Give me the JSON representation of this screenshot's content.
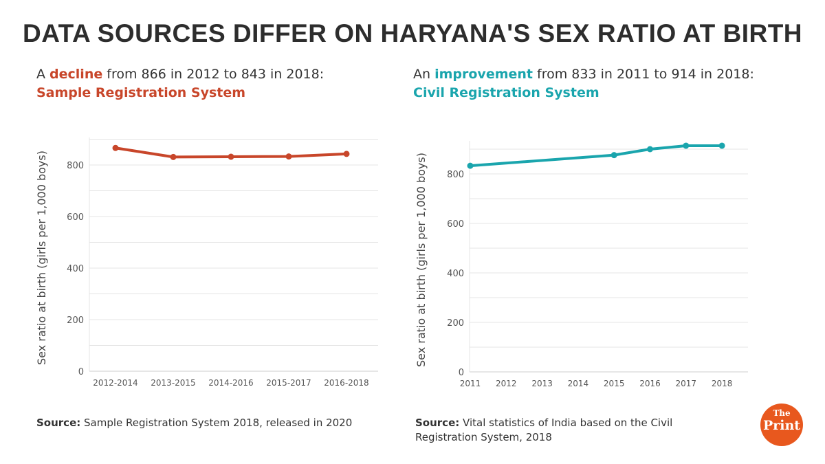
{
  "title": "DATA SOURCES DIFFER ON HARYANA'S SEX RATIO AT BIRTH",
  "left": {
    "pre": "A ",
    "highlight": "decline",
    "post": " from 866 in 2012 to 843 in 2018:",
    "system": "Sample Registration System",
    "source_label": "Source:",
    "source_text": " Sample Registration System 2018, released in 2020"
  },
  "right": {
    "pre": "An ",
    "highlight": "improvement",
    "post": " from 833 in 2011 to 914 in 2018:",
    "system": "Civil Registration System",
    "source_label": "Source:",
    "source_text": " Vital statistics of India based on the Civil Registration System, 2018"
  },
  "logo": {
    "line1": "The",
    "line2": "Print"
  },
  "colors": {
    "srs": "#c8462a",
    "crs": "#1aa5ad",
    "logo": "#e8581e"
  },
  "chart_data": [
    {
      "type": "line",
      "title": "Sample Registration System",
      "ylabel": "Sex ratio at birth (girls per 1,000 boys)",
      "xlabel": "",
      "categories": [
        "2012-2014",
        "2013-2015",
        "2014-2016",
        "2015-2017",
        "2016-2018"
      ],
      "values": [
        866,
        831,
        832,
        833,
        843
      ],
      "ylim": [
        0,
        880
      ],
      "yticks": [
        0,
        200,
        400,
        600,
        800
      ],
      "grid": true,
      "color": "#c8462a"
    },
    {
      "type": "line",
      "title": "Civil Registration System",
      "ylabel": "Sex ratio at birth (girls per 1,000 boys)",
      "xlabel": "",
      "categories": [
        "2011",
        "2012",
        "2013",
        "2014",
        "2015",
        "2016",
        "2017",
        "2018"
      ],
      "x": [
        2011,
        2015,
        2016,
        2017,
        2018
      ],
      "values": [
        833,
        876,
        900,
        914,
        914
      ],
      "ylim": [
        0,
        920
      ],
      "yticks": [
        0,
        200,
        400,
        600,
        800
      ],
      "grid": true,
      "color": "#1aa5ad"
    }
  ]
}
